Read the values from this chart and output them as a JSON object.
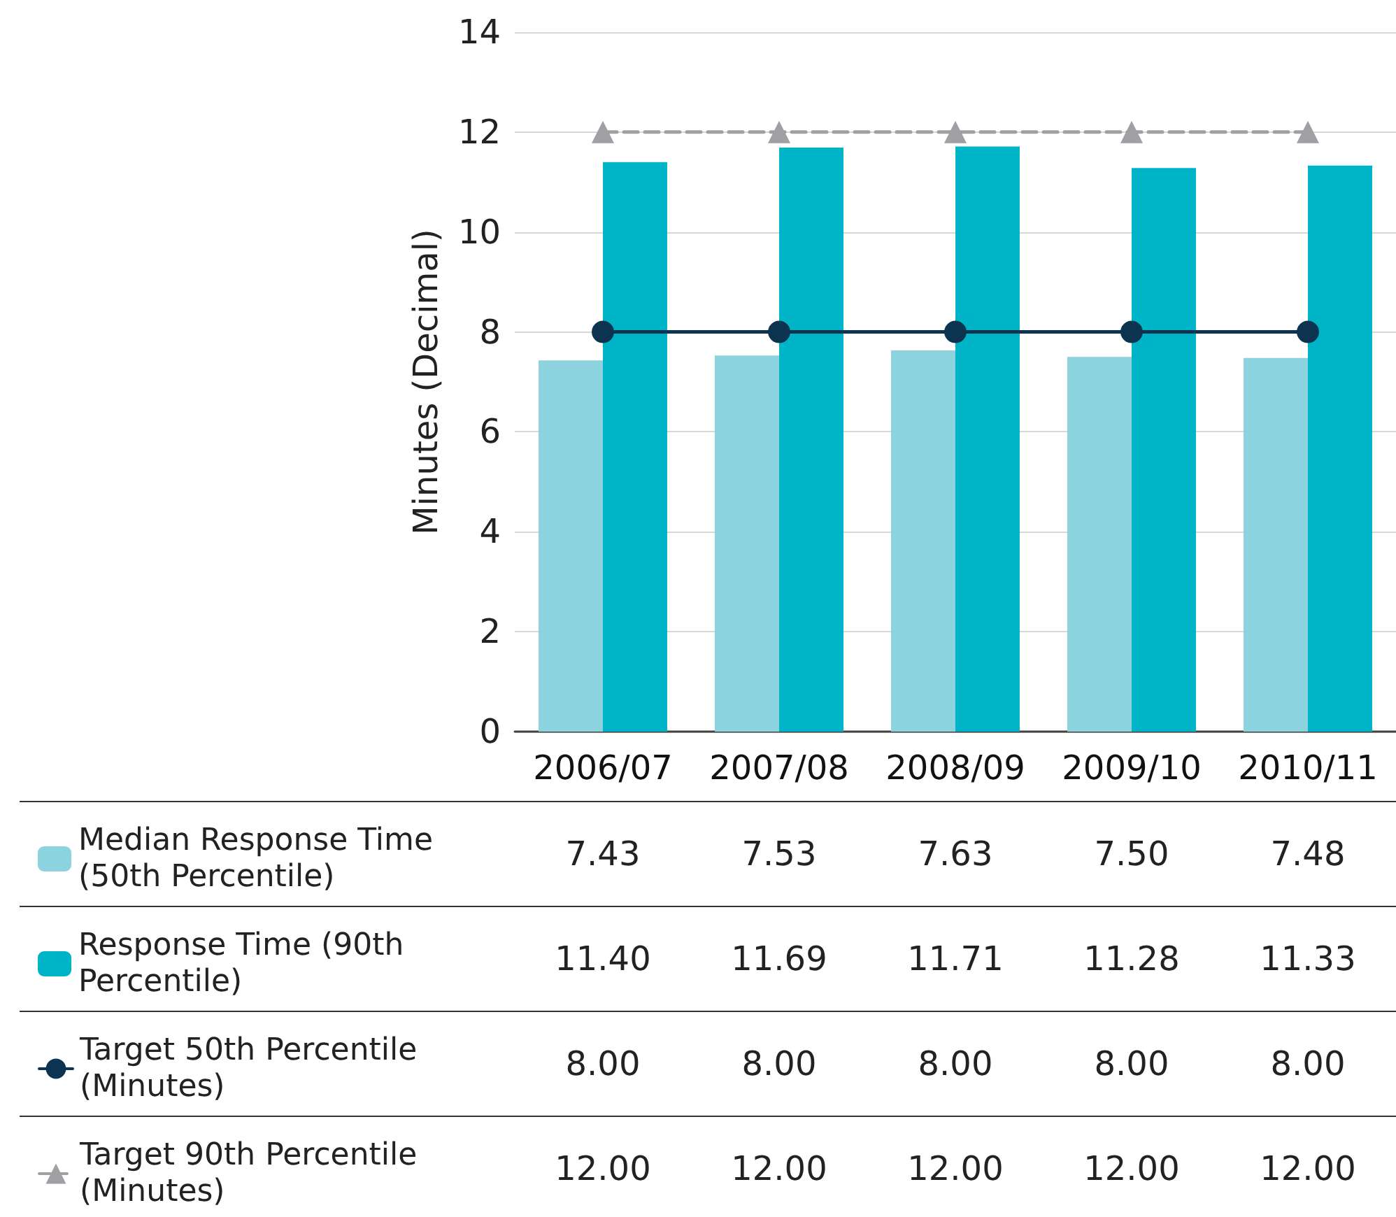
{
  "chart_data": {
    "type": "bar",
    "ylabel": "Minutes (Decimal)",
    "categories": [
      "2006/07",
      "2007/08",
      "2008/09",
      "2009/10",
      "2010/11"
    ],
    "ylim": [
      0,
      14
    ],
    "yticks": [
      0,
      2,
      4,
      6,
      8,
      10,
      12,
      14
    ],
    "grid": "y",
    "legend": "bottom left",
    "series": [
      {
        "name": "Median Response Time (50th Percentile)",
        "color": "#8dd3df",
        "values": [
          7.43,
          7.53,
          7.63,
          7.5,
          7.48
        ],
        "value_labels": [
          "7.43",
          "7.53",
          "7.63",
          "7.50",
          "7.48"
        ]
      },
      {
        "name": "Response Time (90th Percentile)",
        "color": "#00b4c8",
        "values": [
          11.4,
          11.69,
          11.71,
          11.28,
          11.33
        ],
        "value_labels": [
          "11.40",
          "11.69",
          "11.71",
          "11.28",
          "11.33"
        ]
      },
      {
        "name": "Target 50th Percentile (Minutes)",
        "type": "line",
        "color": "#0c3350",
        "marker": "circle",
        "line_style": "solid",
        "values": [
          8.0,
          8.0,
          8.0,
          8.0,
          8.0
        ],
        "value_labels": [
          "8.00",
          "8.00",
          "8.00",
          "8.00",
          "8.00"
        ]
      },
      {
        "name": "Target 90th Percentile (Minutes)",
        "type": "line",
        "color": "#a0a0a4",
        "marker": "triangle",
        "line_style": "dashed",
        "values": [
          12.0,
          12.0,
          12.0,
          12.0,
          12.0
        ],
        "value_labels": [
          "12.00",
          "12.00",
          "12.00",
          "12.00",
          "12.00"
        ]
      }
    ]
  }
}
